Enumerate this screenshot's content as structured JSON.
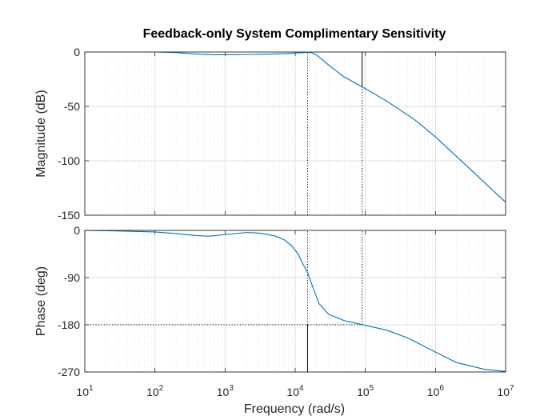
{
  "chart_data": {
    "type": "line",
    "title": "Feedback-only System Complimentary Sensitivity",
    "xlabel": "Frequency  (rad/s)",
    "x_scale": "log",
    "xlim": [
      10,
      10000000
    ],
    "x_ticks": [
      {
        "value": 10,
        "base": "10",
        "exp": "1"
      },
      {
        "value": 100,
        "base": "10",
        "exp": "2"
      },
      {
        "value": 1000,
        "base": "10",
        "exp": "3"
      },
      {
        "value": 10000,
        "base": "10",
        "exp": "4"
      },
      {
        "value": 100000,
        "base": "10",
        "exp": "5"
      },
      {
        "value": 1000000,
        "base": "10",
        "exp": "6"
      },
      {
        "value": 10000000,
        "base": "10",
        "exp": "7"
      }
    ],
    "grid": true,
    "colors": {
      "line": "#0072BD",
      "grid": "#d9d9d9",
      "axis": "#262626",
      "marker": "#000000"
    },
    "panels": [
      {
        "id": "magnitude",
        "ylabel": "Magnitude (dB)",
        "ylim": [
          -150,
          0
        ],
        "y_ticks": [
          {
            "value": 0,
            "label": "0"
          },
          {
            "value": -50,
            "label": "-50"
          },
          {
            "value": -100,
            "label": "-100"
          },
          {
            "value": -150,
            "label": "-150"
          }
        ],
        "series": [
          {
            "x": [
              10,
              30,
              100,
              200,
              400,
              700,
              1000,
              2000,
              4000,
              7000,
              10000,
              13000,
              15000,
              17000,
              20000,
              30000,
              50000,
              90000,
              200000,
              500000,
              1000000,
              2000000,
              5000000,
              10000000
            ],
            "y": [
              0,
              0,
              0,
              -0.5,
              -2,
              -2.5,
              -2.5,
              -2.3,
              -2,
              -1.5,
              -1,
              -0.5,
              -0.3,
              -0.6,
              -2.5,
              -12,
              -23,
              -32,
              -45,
              -62,
              -78,
              -96,
              -120,
              -138
            ]
          }
        ],
        "markers": [
          {
            "x": 15000,
            "y_from": -150,
            "y_to": 0,
            "style": "dotted"
          },
          {
            "x": 90000,
            "y_from": -150,
            "y_to": -32,
            "style": "dotted"
          },
          {
            "x": 90000,
            "y_from": -32,
            "y_to": 0,
            "style": "solid"
          }
        ]
      },
      {
        "id": "phase",
        "ylabel": "Phase (deg)",
        "ylim": [
          -270,
          0
        ],
        "y_ticks": [
          {
            "value": 0,
            "label": "0"
          },
          {
            "value": -90,
            "label": "-90"
          },
          {
            "value": -180,
            "label": "-180"
          },
          {
            "value": -270,
            "label": "-270"
          }
        ],
        "series": [
          {
            "x": [
              10,
              30,
              100,
              200,
              400,
              600,
              1000,
              2000,
              3000,
              5000,
              7000,
              9000,
              11000,
              13000,
              15000,
              18000,
              22000,
              30000,
              50000,
              100000,
              200000,
              400000,
              1000000,
              2000000,
              5000000,
              10000000
            ],
            "y": [
              0,
              -1,
              -3,
              -6,
              -10,
              -11,
              -8,
              -4,
              -5,
              -10,
              -18,
              -30,
              -45,
              -65,
              -80,
              -110,
              -140,
              -160,
              -172,
              -181,
              -190,
              -205,
              -232,
              -252,
              -265,
              -269
            ]
          }
        ],
        "markers": [
          {
            "x": 15000,
            "y_from": -270,
            "y_to": -180,
            "style": "solid"
          },
          {
            "x": 15000,
            "y_from": -180,
            "y_to": 0,
            "style": "dotted"
          },
          {
            "x": 90000,
            "y_from": -180,
            "y_to": 0,
            "style": "dotted"
          },
          {
            "hline": -180,
            "x_from": 10,
            "x_to": 90000,
            "style": "dotted"
          }
        ]
      }
    ]
  }
}
